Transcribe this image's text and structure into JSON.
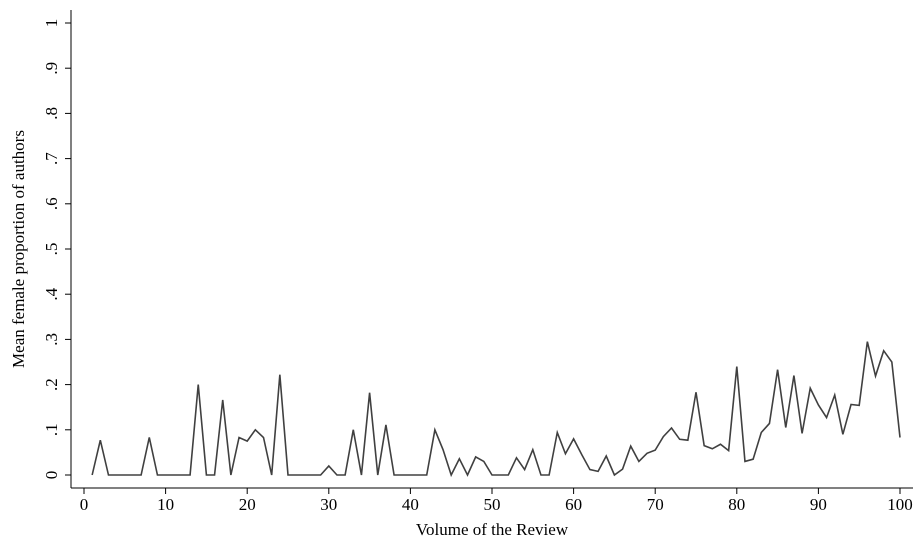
{
  "chart_data": {
    "type": "line",
    "title": "",
    "xlabel": "Volume of the Review",
    "ylabel": "Mean female proportion of authors",
    "xlim": [
      0,
      100
    ],
    "ylim": [
      0,
      1
    ],
    "x_ticks": [
      0,
      10,
      20,
      30,
      40,
      50,
      60,
      70,
      80,
      90,
      100
    ],
    "x_tick_labels": [
      "0",
      "10",
      "20",
      "30",
      "40",
      "50",
      "60",
      "70",
      "80",
      "90",
      "100"
    ],
    "y_ticks": [
      0,
      0.1,
      0.2,
      0.3,
      0.4,
      0.5,
      0.6,
      0.7,
      0.8,
      0.9,
      1
    ],
    "y_tick_labels": [
      "0",
      ".1",
      ".2",
      ".3",
      ".4",
      ".5",
      ".6",
      ".7",
      ".8",
      ".9",
      "1"
    ],
    "grid": false,
    "legend": "none",
    "line_color": "#404040",
    "series": [
      {
        "x": [
          1,
          2,
          3,
          4,
          5,
          6,
          7,
          8,
          9,
          10,
          11,
          12,
          13,
          14,
          15,
          16,
          17,
          18,
          19,
          20,
          21,
          22,
          23,
          24,
          25,
          26,
          27,
          28,
          29,
          30,
          31,
          32,
          33,
          34,
          35,
          36,
          37,
          38,
          39,
          40,
          41,
          42,
          43,
          44,
          45,
          46,
          47,
          48,
          49,
          50,
          51,
          52,
          53,
          54,
          55,
          56,
          57,
          58,
          59,
          60,
          61,
          62,
          63,
          64,
          65,
          66,
          67,
          68,
          69,
          70,
          71,
          72,
          73,
          74,
          75,
          76,
          77,
          78,
          79,
          80,
          81,
          82,
          83,
          84,
          85,
          86,
          87,
          88,
          89,
          90,
          91,
          92,
          93,
          94,
          95,
          96,
          97,
          98,
          99,
          100
        ],
        "values": [
          0,
          0.077,
          0,
          0,
          0,
          0,
          0,
          0.083,
          0,
          0,
          0,
          0,
          0,
          0.2,
          0,
          0,
          0.166,
          0,
          0.083,
          0.075,
          0.1,
          0.083,
          0,
          0.222,
          0,
          0,
          0,
          0,
          0,
          0.02,
          0,
          0,
          0.1,
          0,
          0.182,
          0,
          0.111,
          0,
          0,
          0,
          0,
          0,
          0.1,
          0.056,
          0,
          0.036,
          0,
          0.04,
          0.03,
          0,
          0,
          0,
          0.038,
          0.012,
          0.056,
          0,
          0,
          0.094,
          0.047,
          0.08,
          0.045,
          0.012,
          0.008,
          0.042,
          0,
          0.013,
          0.064,
          0.03,
          0.048,
          0.055,
          0.085,
          0.104,
          0.079,
          0.077,
          0.183,
          0.065,
          0.058,
          0.068,
          0.054,
          0.24,
          0.03,
          0.035,
          0.094,
          0.114,
          0.233,
          0.105,
          0.22,
          0.092,
          0.192,
          0.155,
          0.127,
          0.177,
          0.09,
          0.156,
          0.154,
          0.295,
          0.219,
          0.275,
          0.25,
          0.083
        ]
      }
    ]
  }
}
